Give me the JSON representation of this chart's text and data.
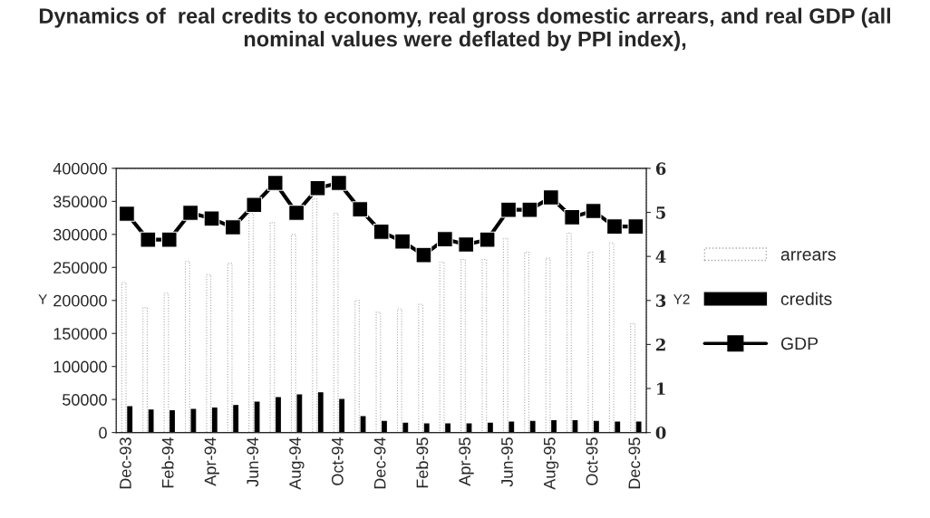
{
  "chart_data": {
    "type": "bar",
    "title": "Dynamics of  real credits to economy, real gross domestic arrears, and real GDP (all nominal values were deflated by PPI index),",
    "categories": [
      "Dec-93",
      null,
      "Feb-94",
      null,
      "Apr-94",
      null,
      "Jun-94",
      null,
      "Aug-94",
      null,
      "Oct-94",
      null,
      "Dec-94",
      null,
      "Feb-95",
      null,
      "Apr-95",
      null,
      "Jun-95",
      null,
      "Aug-95",
      null,
      "Oct-95",
      null,
      "Dec-95"
    ],
    "ylabel": "Y",
    "y2label": "Y2",
    "series": [
      {
        "name": "arrears",
        "color": "#ffffff",
        "values": [
          227000,
          189000,
          211000,
          259000,
          239000,
          256000,
          332000,
          318000,
          300000,
          354000,
          332000,
          200000,
          182000,
          187000,
          194000,
          258000,
          262000,
          262000,
          294000,
          273000,
          264000,
          302000,
          273000,
          287000,
          165000
        ]
      },
      {
        "name": "credits",
        "color": "#000000",
        "values": [
          39000,
          34000,
          33000,
          35000,
          37000,
          41000,
          46000,
          53000,
          57000,
          60000,
          50000,
          24000,
          17000,
          14000,
          13000,
          13000,
          13000,
          14000,
          16000,
          17000,
          18000,
          18000,
          17000,
          16000,
          16000
        ]
      },
      {
        "name": "GDP",
        "type": "line",
        "axis": "y2",
        "color": "#000000",
        "values": [
          4.97,
          4.38,
          4.38,
          4.99,
          4.86,
          4.66,
          5.17,
          5.67,
          4.99,
          5.55,
          5.67,
          5.07,
          4.56,
          4.34,
          4.03,
          4.39,
          4.27,
          4.38,
          5.06,
          5.06,
          5.34,
          4.89,
          5.03,
          4.68,
          4.68
        ]
      }
    ],
    "ylim": [
      0,
      400000
    ],
    "yticks": [
      0,
      50000,
      100000,
      150000,
      200000,
      250000,
      300000,
      350000,
      400000
    ],
    "y2lim": [
      0,
      6
    ],
    "y2ticks": [
      0,
      1,
      2,
      3,
      4,
      5,
      6
    ],
    "marker": "square",
    "grid": false,
    "legend": "right"
  }
}
